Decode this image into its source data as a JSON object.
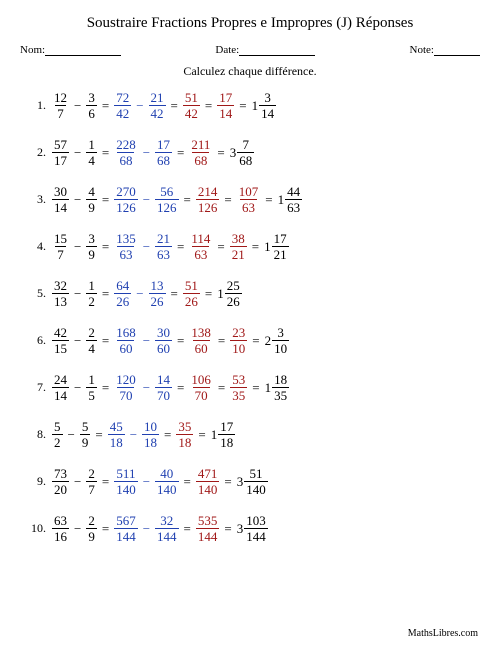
{
  "title": "Soustraire Fractions Propres e Impropres (J) Réponses",
  "header": {
    "name_label": "Nom:",
    "date_label": "Date:",
    "note_label": "Note:",
    "name_blank_width": 76,
    "date_blank_width": 76,
    "note_blank_width": 46
  },
  "instruction": "Calculez chaque différence.",
  "colors": {
    "black": "#000000",
    "blue": "#2040b0",
    "red": "#a01818",
    "background": "#ffffff"
  },
  "problems": [
    {
      "idx": "1.",
      "a": {
        "n": "12",
        "d": "7"
      },
      "b": {
        "n": "3",
        "d": "6"
      },
      "a2": {
        "n": "72",
        "d": "42"
      },
      "b2": {
        "n": "21",
        "d": "42"
      },
      "diff": {
        "n": "51",
        "d": "42"
      },
      "simpl": {
        "n": "17",
        "d": "14"
      },
      "mixed": {
        "w": "1",
        "n": "3",
        "d": "14"
      }
    },
    {
      "idx": "2.",
      "a": {
        "n": "57",
        "d": "17"
      },
      "b": {
        "n": "1",
        "d": "4"
      },
      "a2": {
        "n": "228",
        "d": "68"
      },
      "b2": {
        "n": "17",
        "d": "68"
      },
      "diff": {
        "n": "211",
        "d": "68"
      },
      "mixed": {
        "w": "3",
        "n": "7",
        "d": "68"
      }
    },
    {
      "idx": "3.",
      "a": {
        "n": "30",
        "d": "14"
      },
      "b": {
        "n": "4",
        "d": "9"
      },
      "a2": {
        "n": "270",
        "d": "126"
      },
      "b2": {
        "n": "56",
        "d": "126"
      },
      "diff": {
        "n": "214",
        "d": "126"
      },
      "simpl": {
        "n": "107",
        "d": "63"
      },
      "mixed": {
        "w": "1",
        "n": "44",
        "d": "63"
      }
    },
    {
      "idx": "4.",
      "a": {
        "n": "15",
        "d": "7"
      },
      "b": {
        "n": "3",
        "d": "9"
      },
      "a2": {
        "n": "135",
        "d": "63"
      },
      "b2": {
        "n": "21",
        "d": "63"
      },
      "diff": {
        "n": "114",
        "d": "63"
      },
      "simpl": {
        "n": "38",
        "d": "21"
      },
      "mixed": {
        "w": "1",
        "n": "17",
        "d": "21"
      }
    },
    {
      "idx": "5.",
      "a": {
        "n": "32",
        "d": "13"
      },
      "b": {
        "n": "1",
        "d": "2"
      },
      "a2": {
        "n": "64",
        "d": "26"
      },
      "b2": {
        "n": "13",
        "d": "26"
      },
      "diff": {
        "n": "51",
        "d": "26"
      },
      "mixed": {
        "w": "1",
        "n": "25",
        "d": "26"
      }
    },
    {
      "idx": "6.",
      "a": {
        "n": "42",
        "d": "15"
      },
      "b": {
        "n": "2",
        "d": "4"
      },
      "a2": {
        "n": "168",
        "d": "60"
      },
      "b2": {
        "n": "30",
        "d": "60"
      },
      "diff": {
        "n": "138",
        "d": "60"
      },
      "simpl": {
        "n": "23",
        "d": "10"
      },
      "mixed": {
        "w": "2",
        "n": "3",
        "d": "10"
      }
    },
    {
      "idx": "7.",
      "a": {
        "n": "24",
        "d": "14"
      },
      "b": {
        "n": "1",
        "d": "5"
      },
      "a2": {
        "n": "120",
        "d": "70"
      },
      "b2": {
        "n": "14",
        "d": "70"
      },
      "diff": {
        "n": "106",
        "d": "70"
      },
      "simpl": {
        "n": "53",
        "d": "35"
      },
      "mixed": {
        "w": "1",
        "n": "18",
        "d": "35"
      }
    },
    {
      "idx": "8.",
      "a": {
        "n": "5",
        "d": "2"
      },
      "b": {
        "n": "5",
        "d": "9"
      },
      "a2": {
        "n": "45",
        "d": "18"
      },
      "b2": {
        "n": "10",
        "d": "18"
      },
      "diff": {
        "n": "35",
        "d": "18"
      },
      "mixed": {
        "w": "1",
        "n": "17",
        "d": "18"
      }
    },
    {
      "idx": "9.",
      "a": {
        "n": "73",
        "d": "20"
      },
      "b": {
        "n": "2",
        "d": "7"
      },
      "a2": {
        "n": "511",
        "d": "140"
      },
      "b2": {
        "n": "40",
        "d": "140"
      },
      "diff": {
        "n": "471",
        "d": "140"
      },
      "mixed": {
        "w": "3",
        "n": "51",
        "d": "140"
      }
    },
    {
      "idx": "10.",
      "a": {
        "n": "63",
        "d": "16"
      },
      "b": {
        "n": "2",
        "d": "9"
      },
      "a2": {
        "n": "567",
        "d": "144"
      },
      "b2": {
        "n": "32",
        "d": "144"
      },
      "diff": {
        "n": "535",
        "d": "144"
      },
      "mixed": {
        "w": "3",
        "n": "103",
        "d": "144"
      }
    }
  ],
  "footer": "MathsLibres.com"
}
